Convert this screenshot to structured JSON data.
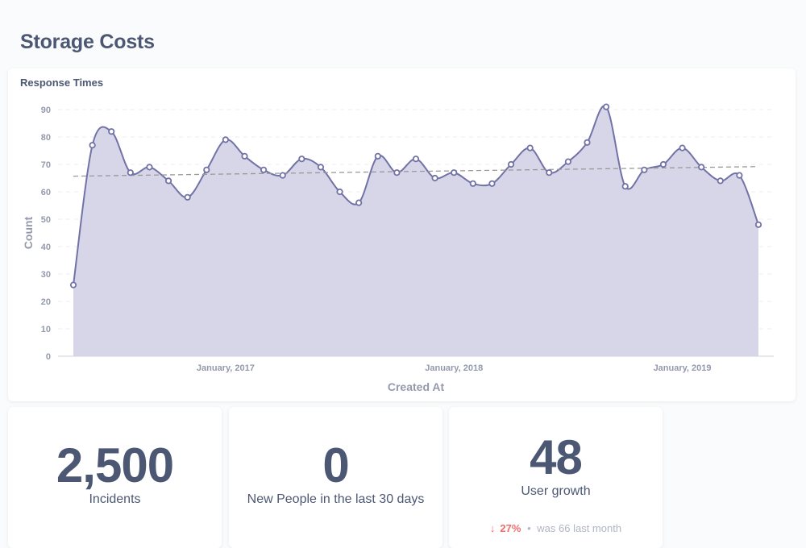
{
  "page": {
    "title": "Storage Costs"
  },
  "chart_card": {
    "title": "Response Times"
  },
  "chart_data": {
    "type": "area",
    "title": "Response Times",
    "xlabel": "Created At",
    "ylabel": "Count",
    "ylim": [
      0,
      90
    ],
    "yticks": [
      0,
      10,
      20,
      30,
      40,
      50,
      60,
      70,
      80,
      90
    ],
    "x_tick_labels": [
      "January, 2017",
      "January, 2018",
      "January, 2019"
    ],
    "x": [
      "2016-05",
      "2016-06",
      "2016-07",
      "2016-08",
      "2016-09",
      "2016-10",
      "2016-11",
      "2016-12",
      "2017-01",
      "2017-02",
      "2017-03",
      "2017-04",
      "2017-05",
      "2017-06",
      "2017-07",
      "2017-08",
      "2017-09",
      "2017-10",
      "2017-11",
      "2017-12",
      "2018-01",
      "2018-02",
      "2018-03",
      "2018-04",
      "2018-05",
      "2018-06",
      "2018-07",
      "2018-08",
      "2018-09",
      "2018-10",
      "2018-11",
      "2018-12",
      "2019-01",
      "2019-02",
      "2019-03",
      "2019-04",
      "2019-05"
    ],
    "values": [
      26,
      77,
      82,
      67,
      69,
      64,
      58,
      68,
      79,
      73,
      68,
      66,
      72,
      69,
      60,
      56,
      73,
      67,
      72,
      65,
      67,
      63,
      63,
      70,
      76,
      67,
      71,
      78,
      91,
      62,
      68,
      70,
      76,
      69,
      64,
      66,
      48
    ],
    "trendline": {
      "start": 65.7,
      "end": 69.2
    },
    "grid": true,
    "colors": {
      "line": "#7172a6",
      "fill": "#d6d6e8",
      "trend": "#999999"
    }
  },
  "scalars": [
    {
      "value": "2,500",
      "label": "Incidents"
    },
    {
      "value": "0",
      "label": "New People in the last 30 days"
    },
    {
      "value": "48",
      "label": "User growth",
      "trend": {
        "arrow": "↓",
        "pct": "27%",
        "dot": "•",
        "prev_label": "was",
        "prev_value": "66",
        "period": "last month"
      }
    }
  ]
}
